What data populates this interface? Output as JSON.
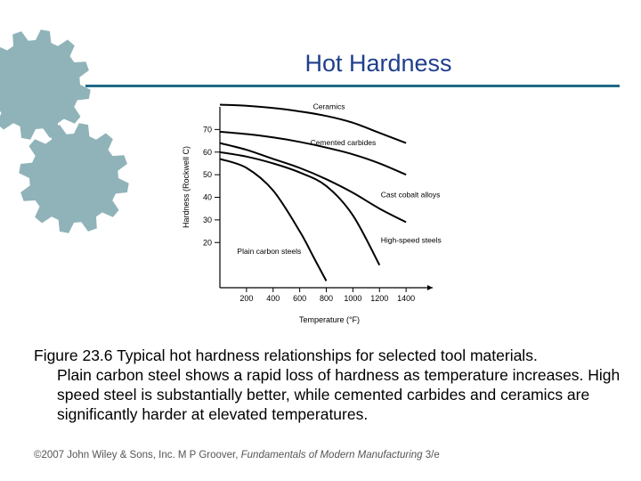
{
  "slide": {
    "title": "Hot Hardness",
    "caption_first": "Figure 23.6  Typical hot hardness relationships for selected tool materials.",
    "caption_rest": "Plain carbon steel shows a rapid loss of hardness as temperature increases. High speed steel is substantially better, while cemented carbides and ceramics are significantly harder at elevated temperatures.",
    "footer_prefix": "©2007 John Wiley & Sons, Inc.  M P Groover, ",
    "footer_book": "Fundamentals of Modern Manufacturing",
    "footer_suffix": " 3/e"
  },
  "colors": {
    "title": "#1f3f8c",
    "rule": "#1f6a86",
    "gear": "#8fb3b8"
  },
  "chart_data": {
    "type": "line",
    "xlabel": "Temperature (°F)",
    "ylabel": "Hardness (Rockwell C)",
    "xlim": [
      0,
      1600
    ],
    "ylim": [
      0,
      80
    ],
    "xticks": [
      200,
      400,
      600,
      800,
      1000,
      1200,
      1400
    ],
    "yticks": [
      20,
      30,
      40,
      50,
      60,
      70
    ],
    "series": [
      {
        "name": "Ceramics",
        "x": [
          0,
          200,
          400,
          600,
          800,
          1000,
          1200,
          1400
        ],
        "y": [
          81,
          80.5,
          79.5,
          78,
          76,
          73,
          68.5,
          64
        ]
      },
      {
        "name": "Cemented carbides",
        "x": [
          0,
          200,
          400,
          600,
          800,
          1000,
          1200,
          1400
        ],
        "y": [
          69,
          68,
          66.5,
          64.5,
          62,
          59,
          55,
          50
        ]
      },
      {
        "name": "Cast cobalt alloys",
        "x": [
          0,
          200,
          400,
          600,
          800,
          1000,
          1200,
          1400
        ],
        "y": [
          64,
          61,
          57,
          53,
          48,
          42,
          35,
          29
        ]
      },
      {
        "name": "High-speed steels",
        "x": [
          0,
          200,
          400,
          600,
          800,
          1000,
          1200
        ],
        "y": [
          60,
          58,
          55,
          51,
          45,
          32,
          10
        ]
      },
      {
        "name": "Plain carbon steels",
        "x": [
          0,
          200,
          400,
          600,
          700,
          800
        ],
        "y": [
          57,
          53,
          43,
          25,
          14,
          3
        ]
      }
    ],
    "labels": [
      {
        "series": "Ceramics",
        "x": 700,
        "y": 79
      },
      {
        "series": "Cemented carbides",
        "x": 680,
        "y": 63
      },
      {
        "series": "Cast cobalt alloys",
        "x": 1210,
        "y": 40
      },
      {
        "series": "High-speed steels",
        "x": 1210,
        "y": 20
      },
      {
        "series": "Plain carbon steels",
        "x": 130,
        "y": 15
      }
    ]
  }
}
